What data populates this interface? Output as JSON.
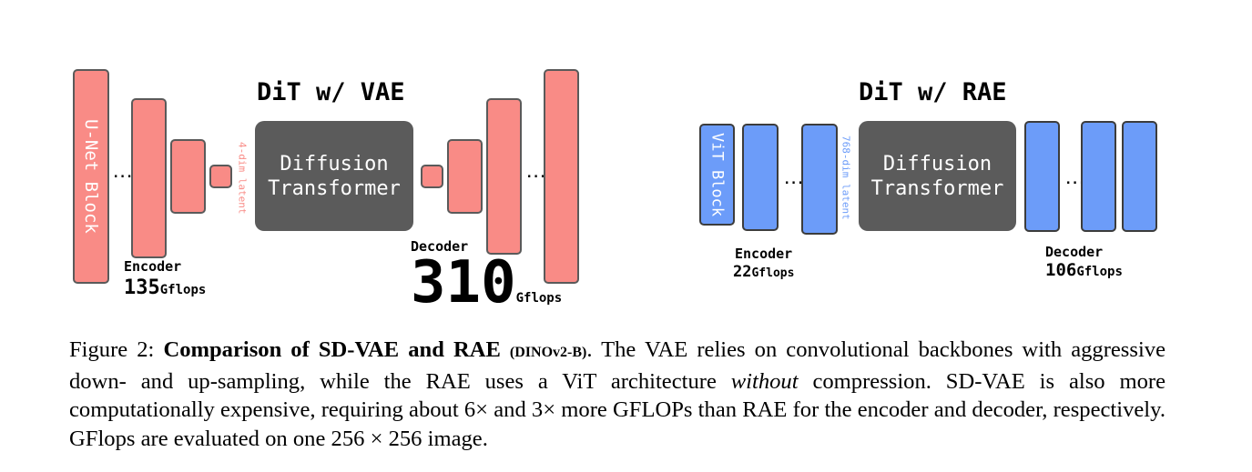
{
  "vae_diagram": {
    "title": "DiT w/ VAE",
    "unet_label": "U-Net Block",
    "latent_label": "4-dim latent",
    "dit_line1": "Diffusion",
    "dit_line2": "Transformer",
    "dots": "...",
    "encoder_label": "Encoder",
    "encoder_gflops": "135",
    "decoder_label": "Decoder",
    "decoder_gflops": "310",
    "unit": "Gflops",
    "color": "#f98b86"
  },
  "rae_diagram": {
    "title": "DiT w/ RAE",
    "vit_label": "ViT Block",
    "latent_label": "768-dim latent",
    "dit_line1": "Diffusion",
    "dit_line2": "Transformer",
    "dots": "...",
    "encoder_label": "Encoder",
    "encoder_gflops": "22",
    "decoder_label": "Decoder",
    "decoder_gflops": "106",
    "unit": "Gflops",
    "color": "#6c9cf9"
  },
  "caption": {
    "prefix": "Figure 2: ",
    "bold": "Comparison of SD-VAE and RAE",
    "small_bold": "(DINOv2-B)",
    "text1": ". The VAE relies on convolutional backbones with aggressive down- and up-sampling, while the RAE uses a ViT architecture ",
    "italic": "without",
    "text2": " compression. SD-VAE is also more computationally expensive, requiring about 6× and 3× more GFLOPs than RAE for the encoder and decoder, respectively. GFlops are evaluated on one 256 × 256 image."
  }
}
